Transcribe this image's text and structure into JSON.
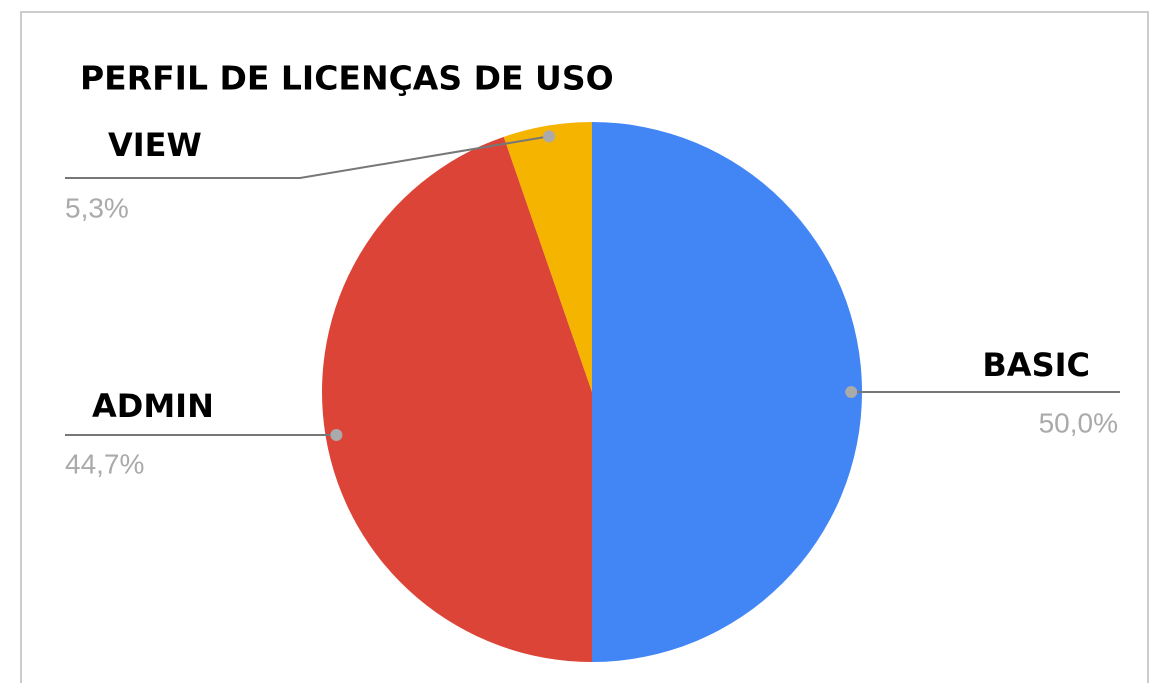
{
  "chart_data": {
    "type": "pie",
    "title": "PERFIL DE LICENÇAS DE USO",
    "categories": [
      "BASIC",
      "ADMIN",
      "VIEW"
    ],
    "values": [
      50.0,
      44.7,
      5.3
    ],
    "value_labels": [
      "50,0%",
      "44,7%",
      "5,3%"
    ],
    "colors": [
      "#4285f4",
      "#db4437",
      "#f4b400"
    ]
  }
}
